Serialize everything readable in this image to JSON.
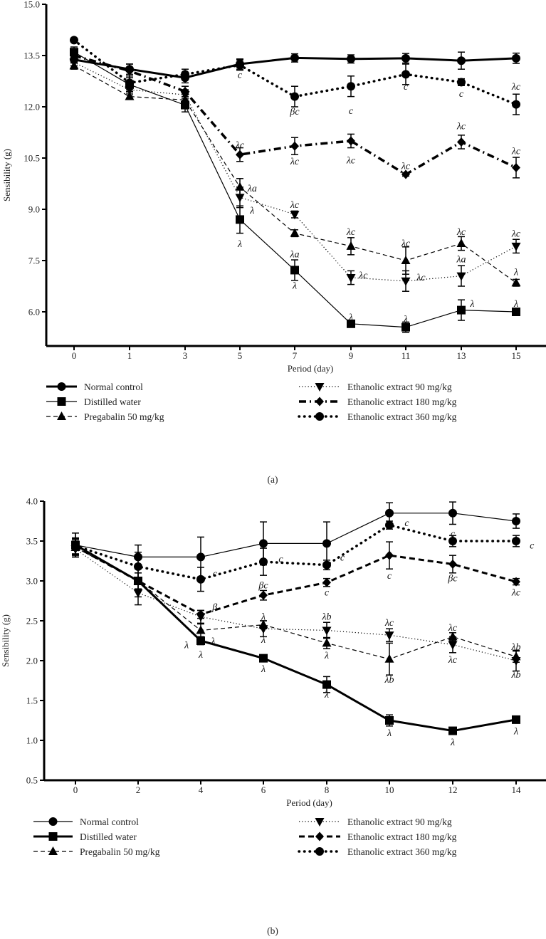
{
  "chart_data": [
    {
      "type": "line",
      "panel_caption": "(a)",
      "xlabel": "Period (day)",
      "ylabel": "Sensibility (g)",
      "ylim": [
        5.0,
        15.0
      ],
      "yticks": [
        "6.0",
        "7.5",
        "9.0",
        "10.5",
        "12.0",
        "13.5",
        "15.0"
      ],
      "ytick_values": [
        6.0,
        7.5,
        9.0,
        10.5,
        12.0,
        13.5,
        15.0
      ],
      "x": [
        0,
        1,
        3,
        5,
        7,
        9,
        11,
        13,
        15
      ],
      "xtick_labels": [
        "0",
        "1",
        "3",
        "5",
        "7",
        "9",
        "11",
        "13",
        "15"
      ],
      "series": [
        {
          "name": "Normal control",
          "marker": "circle",
          "style": "thick-solid",
          "values": [
            13.38,
            13.1,
            12.85,
            13.25,
            13.43,
            13.4,
            13.42,
            13.35,
            13.42
          ],
          "err": [
            0.1,
            0.15,
            0.15,
            0.15,
            0.12,
            0.12,
            0.14,
            0.25,
            0.15
          ]
        },
        {
          "name": "Distilled water",
          "marker": "square",
          "style": "thin-solid",
          "values": [
            13.6,
            12.65,
            12.05,
            8.7,
            7.22,
            5.65,
            5.55,
            6.05,
            6.0
          ],
          "err": [
            0.15,
            0.2,
            0.2,
            0.4,
            0.3,
            0.05,
            0.15,
            0.3,
            0.05
          ]
        },
        {
          "name": "Pregabalin 50 mg/kg",
          "marker": "triangle-up",
          "style": "thin-dashed",
          "values": [
            13.2,
            12.3,
            12.2,
            9.65,
            8.3,
            7.92,
            7.5,
            8.0,
            6.85
          ],
          "err": [
            0.1,
            0.05,
            0.2,
            0.25,
            0.1,
            0.25,
            0.4,
            0.2,
            0.1
          ]
        },
        {
          "name": "Ethanolic extract 90 mg/kg",
          "marker": "triangle-down",
          "style": "thin-dotted",
          "values": [
            13.3,
            12.5,
            12.35,
            9.35,
            8.85,
            7.0,
            6.9,
            7.05,
            7.92
          ],
          "err": [
            0.1,
            0.1,
            0.15,
            0.3,
            0.1,
            0.2,
            0.3,
            0.3,
            0.2
          ]
        },
        {
          "name": "Ethanolic extract 180 mg/kg",
          "marker": "diamond",
          "style": "thick-dashdot",
          "values": [
            13.5,
            13.05,
            12.45,
            10.6,
            10.85,
            11.0,
            10.02,
            10.97,
            10.22
          ],
          "err": [
            0.1,
            0.2,
            0.15,
            0.2,
            0.25,
            0.2,
            0.05,
            0.2,
            0.3
          ]
        },
        {
          "name": "Ethanolic extract 360 mg/kg",
          "marker": "circle",
          "style": "thick-dotted",
          "values": [
            13.95,
            12.7,
            12.95,
            13.22,
            12.3,
            12.6,
            12.95,
            12.72,
            12.07
          ],
          "err": [
            0.05,
            0.2,
            0.15,
            0.15,
            0.3,
            0.3,
            0.3,
            0.1,
            0.3
          ]
        }
      ],
      "annotations": [
        {
          "x": 5,
          "y": 12.95,
          "text": "c"
        },
        {
          "x": 7,
          "y": 11.88,
          "text": "βc"
        },
        {
          "x": 9,
          "y": 11.9,
          "text": "c"
        },
        {
          "x": 11,
          "y": 12.6,
          "text": "c"
        },
        {
          "x": 13,
          "y": 12.4,
          "text": "c"
        },
        {
          "x": 15,
          "y": 12.6,
          "text": "λc"
        },
        {
          "x": 5,
          "y": 10.9,
          "text": "λc"
        },
        {
          "x": 7,
          "y": 10.42,
          "text": "λc"
        },
        {
          "x": 9,
          "y": 10.45,
          "text": "λc"
        },
        {
          "x": 11,
          "y": 10.28,
          "text": "λc"
        },
        {
          "x": 13,
          "y": 11.45,
          "text": "λc"
        },
        {
          "x": 15,
          "y": 10.72,
          "text": "λc"
        },
        {
          "x": 5.45,
          "y": 9.62,
          "text": "λa"
        },
        {
          "x": 5.45,
          "y": 8.98,
          "text": "λ"
        },
        {
          "x": 5,
          "y": 8.0,
          "text": "λ"
        },
        {
          "x": 7,
          "y": 9.15,
          "text": "λc"
        },
        {
          "x": 7,
          "y": 7.7,
          "text": "λa"
        },
        {
          "x": 7,
          "y": 6.78,
          "text": "λ"
        },
        {
          "x": 9,
          "y": 8.35,
          "text": "λc"
        },
        {
          "x": 9.45,
          "y": 7.08,
          "text": "λc"
        },
        {
          "x": 9,
          "y": 5.85,
          "text": "λ"
        },
        {
          "x": 11,
          "y": 8.02,
          "text": "λc"
        },
        {
          "x": 11.55,
          "y": 7.02,
          "text": "λc"
        },
        {
          "x": 11,
          "y": 5.8,
          "text": "λ"
        },
        {
          "x": 13,
          "y": 8.35,
          "text": "λc"
        },
        {
          "x": 13,
          "y": 7.55,
          "text": "λa"
        },
        {
          "x": 13.4,
          "y": 6.25,
          "text": "λ"
        },
        {
          "x": 15,
          "y": 8.3,
          "text": "λc"
        },
        {
          "x": 15,
          "y": 7.18,
          "text": "λ"
        },
        {
          "x": 15,
          "y": 6.25,
          "text": "λ"
        }
      ]
    },
    {
      "type": "line",
      "panel_caption": "(b)",
      "xlabel": "Period (day)",
      "ylabel": "Sensibility (g)",
      "ylim": [
        0.5,
        4.0
      ],
      "yticks": [
        "0.5",
        "1.0",
        "1.5",
        "2.0",
        "2.5",
        "3.0",
        "3.5",
        "4.0"
      ],
      "ytick_values": [
        0.5,
        1.0,
        1.5,
        2.0,
        2.5,
        3.0,
        3.5,
        4.0
      ],
      "x": [
        0,
        2,
        4,
        6,
        8,
        10,
        12,
        14
      ],
      "xtick_labels": [
        "0",
        "2",
        "4",
        "6",
        "8",
        "10",
        "12",
        "14"
      ],
      "series": [
        {
          "name": "Normal control",
          "marker": "circle",
          "style": "thin-solid",
          "values": [
            3.45,
            3.3,
            3.3,
            3.47,
            3.47,
            3.85,
            3.85,
            3.75
          ],
          "err": [
            0.15,
            0.15,
            0.25,
            0.27,
            0.27,
            0.13,
            0.14,
            0.09
          ]
        },
        {
          "name": "Distilled water",
          "marker": "square",
          "style": "thick-solid",
          "values": [
            3.45,
            3.0,
            2.25,
            2.03,
            1.7,
            1.25,
            1.12,
            1.26
          ],
          "err": [
            0.15,
            0.2,
            0.05,
            0.02,
            0.1,
            0.07,
            0.03,
            0.03
          ]
        },
        {
          "name": "Pregabalin 50 mg/kg",
          "marker": "triangle-up",
          "style": "thin-dashed",
          "values": [
            3.42,
            3.0,
            2.38,
            2.45,
            2.22,
            2.02,
            2.3,
            2.05
          ],
          "err": [
            0.1,
            0.1,
            0.08,
            0.05,
            0.07,
            0.2,
            0.05,
            0.07
          ]
        },
        {
          "name": "Ethanolic extract 90 mg/kg",
          "marker": "triangle-down",
          "style": "thin-dotted",
          "values": [
            3.4,
            2.85,
            2.55,
            2.4,
            2.38,
            2.32,
            2.2,
            2.0
          ],
          "err": [
            0.1,
            0.15,
            0.08,
            0.1,
            0.1,
            0.08,
            0.1,
            0.13
          ]
        },
        {
          "name": "Ethanolic extract 180 mg/kg",
          "marker": "diamond",
          "style": "thick-dashed",
          "values": [
            3.43,
            3.0,
            2.58,
            2.82,
            2.98,
            3.32,
            3.21,
            2.99
          ],
          "err": [
            0.1,
            0.1,
            0.05,
            0.06,
            0.05,
            0.17,
            0.11,
            0.04
          ]
        },
        {
          "name": "Ethanolic extract 360 mg/kg",
          "marker": "circle",
          "style": "thick-dotted",
          "values": [
            3.44,
            3.18,
            3.02,
            3.24,
            3.2,
            3.7,
            3.5,
            3.5
          ],
          "err": [
            0.1,
            0.18,
            0.15,
            0.17,
            0.06,
            0.05,
            0.07,
            0.07
          ]
        }
      ],
      "annotations": [
        {
          "x": 4.45,
          "y": 3.1,
          "text": "c"
        },
        {
          "x": 4.45,
          "y": 2.68,
          "text": "β"
        },
        {
          "x": 3.55,
          "y": 2.2,
          "text": "λ"
        },
        {
          "x": 4.4,
          "y": 2.25,
          "text": "λ"
        },
        {
          "x": 4,
          "y": 2.08,
          "text": "λ"
        },
        {
          "x": 6.55,
          "y": 3.28,
          "text": "c"
        },
        {
          "x": 6,
          "y": 2.95,
          "text": "βc"
        },
        {
          "x": 6,
          "y": 2.56,
          "text": "λ"
        },
        {
          "x": 6,
          "y": 2.27,
          "text": "λ"
        },
        {
          "x": 6,
          "y": 1.9,
          "text": "λ"
        },
        {
          "x": 8.5,
          "y": 3.3,
          "text": "c"
        },
        {
          "x": 8,
          "y": 2.86,
          "text": "c"
        },
        {
          "x": 8,
          "y": 2.56,
          "text": "λb"
        },
        {
          "x": 8,
          "y": 2.07,
          "text": "λ"
        },
        {
          "x": 8,
          "y": 1.58,
          "text": "λ"
        },
        {
          "x": 10.55,
          "y": 3.73,
          "text": "c"
        },
        {
          "x": 10,
          "y": 3.07,
          "text": "c"
        },
        {
          "x": 10,
          "y": 2.48,
          "text": "λc"
        },
        {
          "x": 10,
          "y": 1.77,
          "text": "λb"
        },
        {
          "x": 10,
          "y": 1.1,
          "text": "λ"
        },
        {
          "x": 12,
          "y": 3.6,
          "text": "c"
        },
        {
          "x": 12,
          "y": 3.04,
          "text": "βc"
        },
        {
          "x": 12,
          "y": 2.42,
          "text": "λc"
        },
        {
          "x": 12,
          "y": 2.02,
          "text": "λc"
        },
        {
          "x": 12,
          "y": 0.98,
          "text": "λ"
        },
        {
          "x": 14.5,
          "y": 3.45,
          "text": "c"
        },
        {
          "x": 14,
          "y": 2.86,
          "text": "λc"
        },
        {
          "x": 14,
          "y": 2.18,
          "text": "λb"
        },
        {
          "x": 14,
          "y": 1.83,
          "text": "λb"
        },
        {
          "x": 14,
          "y": 1.12,
          "text": "λ"
        }
      ]
    }
  ]
}
